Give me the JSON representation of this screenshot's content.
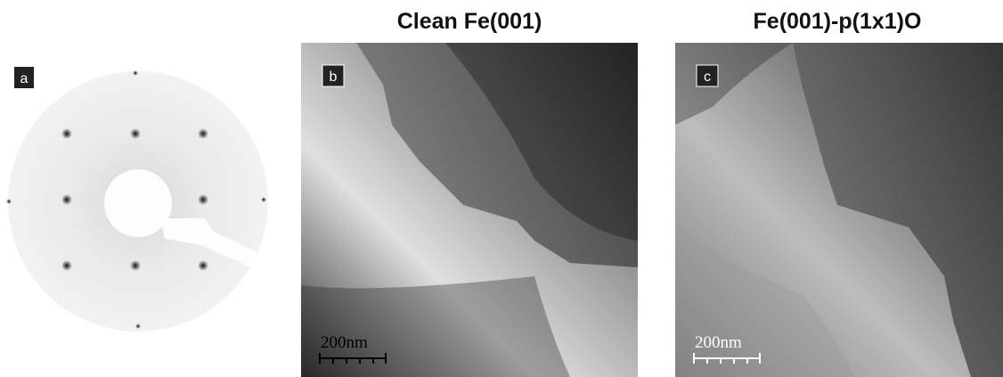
{
  "panels": [
    {
      "label": "a"
    },
    {
      "label": "b",
      "title": "Clean Fe(001)",
      "scale_bar": "200nm"
    },
    {
      "label": "c",
      "title": "Fe(001)-p(1x1)O",
      "scale_bar": "200nm"
    }
  ]
}
